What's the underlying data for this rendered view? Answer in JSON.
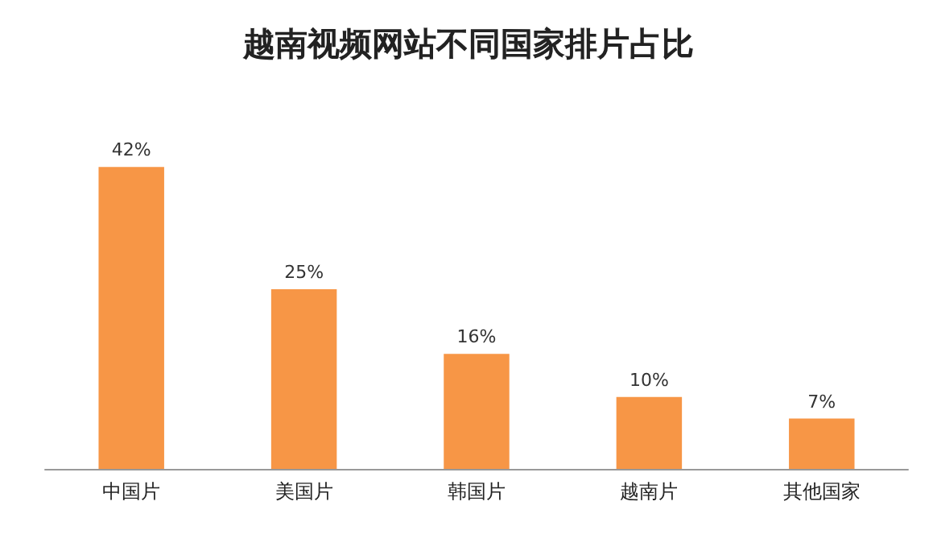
{
  "chart_data": {
    "type": "bar",
    "title": "越南视频网站不同国家排片占比",
    "categories": [
      "中国片",
      "美国片",
      "韩国片",
      "越南片",
      "其他国家"
    ],
    "values": [
      42,
      25,
      16,
      10,
      7
    ],
    "value_labels": [
      "42%",
      "25%",
      "16%",
      "10%",
      "7%"
    ],
    "color": "#f79646"
  }
}
